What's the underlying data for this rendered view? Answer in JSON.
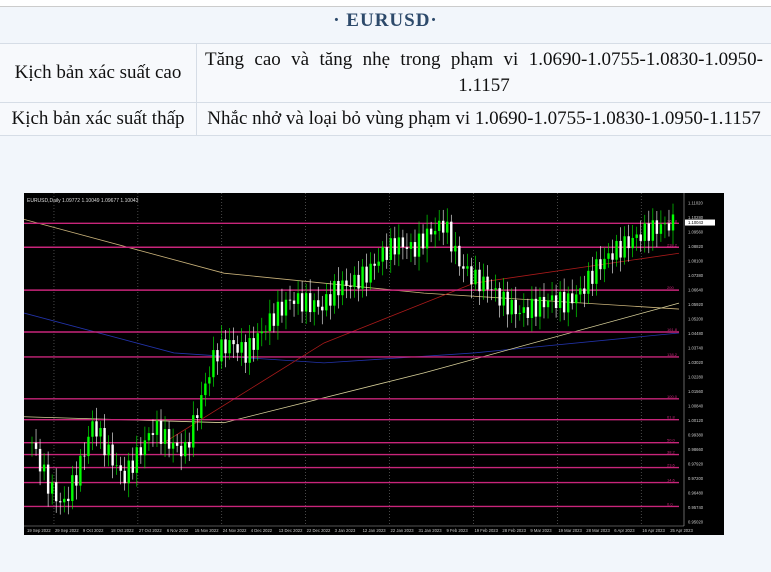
{
  "title": "· EURUSD·",
  "rows": [
    {
      "label": "Kịch bản xác suất cao",
      "text": "Tăng cao và tăng nhẹ trong phạm vi 1.0690-1.0755-1.0830-1.0950-1.1157"
    },
    {
      "label": "Kịch bản xác suất thấp",
      "text": "Nhắc nhở và loại bỏ vùng phạm vi 1.0690-1.0755-1.0830-1.0950-1.1157"
    }
  ],
  "chart_data": {
    "type": "candlestick",
    "header": "EURUSD,Daily  1.09772 1.10049 1.09677 1.10043",
    "current_price": "1.10043",
    "colors": {
      "background": "#000000",
      "up": "#00ff00",
      "down": "#ffffff",
      "levels": "#c8257a"
    },
    "y_ticks": [
      "1.11020",
      "1.10280",
      "1.09560",
      "1.08820",
      "1.08100",
      "1.07380",
      "1.06640",
      "1.05920",
      "1.05200",
      "1.04480",
      "1.03740",
      "1.03020",
      "1.02280",
      "1.01560",
      "1.00840",
      "1.00120",
      "0.99380",
      "0.98660",
      "0.97920",
      "0.97200",
      "0.96480",
      "0.95740",
      "0.95020"
    ],
    "x_ticks": [
      "19 Sep 2022",
      "29 Sep 2022",
      "9 Oct 2022",
      "18 Oct 2022",
      "27 Oct 2022",
      "6 Nov 2022",
      "15 Nov 2022",
      "24 Nov 2022",
      "4 Dec 2022",
      "13 Dec 2022",
      "22 Dec 2022",
      "3 Jan 2023",
      "12 Jan 2023",
      "22 Jan 2023",
      "31 Jan 2023",
      "9 Feb 2023",
      "19 Feb 2023",
      "28 Feb 2023",
      "9 Mar 2023",
      "19 Mar 2023",
      "28 Mar 2023",
      "6 Apr 2023",
      "16 Apr 2023",
      "25 Apr 2023"
    ],
    "ylim": [
      0.9502,
      1.1102
    ],
    "levels": [
      {
        "price": 1.1,
        "label": "261.8"
      },
      {
        "price": 1.088,
        "label": "238.2"
      },
      {
        "price": 1.0665,
        "label": "200"
      },
      {
        "price": 1.0455,
        "label": "161.8"
      },
      {
        "price": 1.033,
        "label": "138.2"
      },
      {
        "price": 1.012,
        "label": "100.0"
      },
      {
        "price": 1.0015,
        "label": "61.8"
      },
      {
        "price": 0.99,
        "label": "50.0"
      },
      {
        "price": 0.984,
        "label": "38.2"
      },
      {
        "price": 0.9775,
        "label": "23.6"
      },
      {
        "price": 0.97,
        "label": "14.6"
      },
      {
        "price": 0.958,
        "label": "0.0"
      }
    ],
    "close_path": [
      0.99,
      0.97,
      0.958,
      0.975,
      1.0,
      0.985,
      0.972,
      0.985,
      0.998,
      0.99,
      0.985,
      1.01,
      1.035,
      1.04,
      1.035,
      1.045,
      1.055,
      1.062,
      1.06,
      1.058,
      1.068,
      1.07,
      1.075,
      1.085,
      1.09,
      1.087,
      1.095,
      1.1,
      1.08,
      1.072,
      1.068,
      1.06,
      1.055,
      1.058,
      1.062,
      1.06,
      1.066,
      1.078,
      1.085,
      1.09,
      1.095,
      1.098,
      1.1
    ]
  }
}
